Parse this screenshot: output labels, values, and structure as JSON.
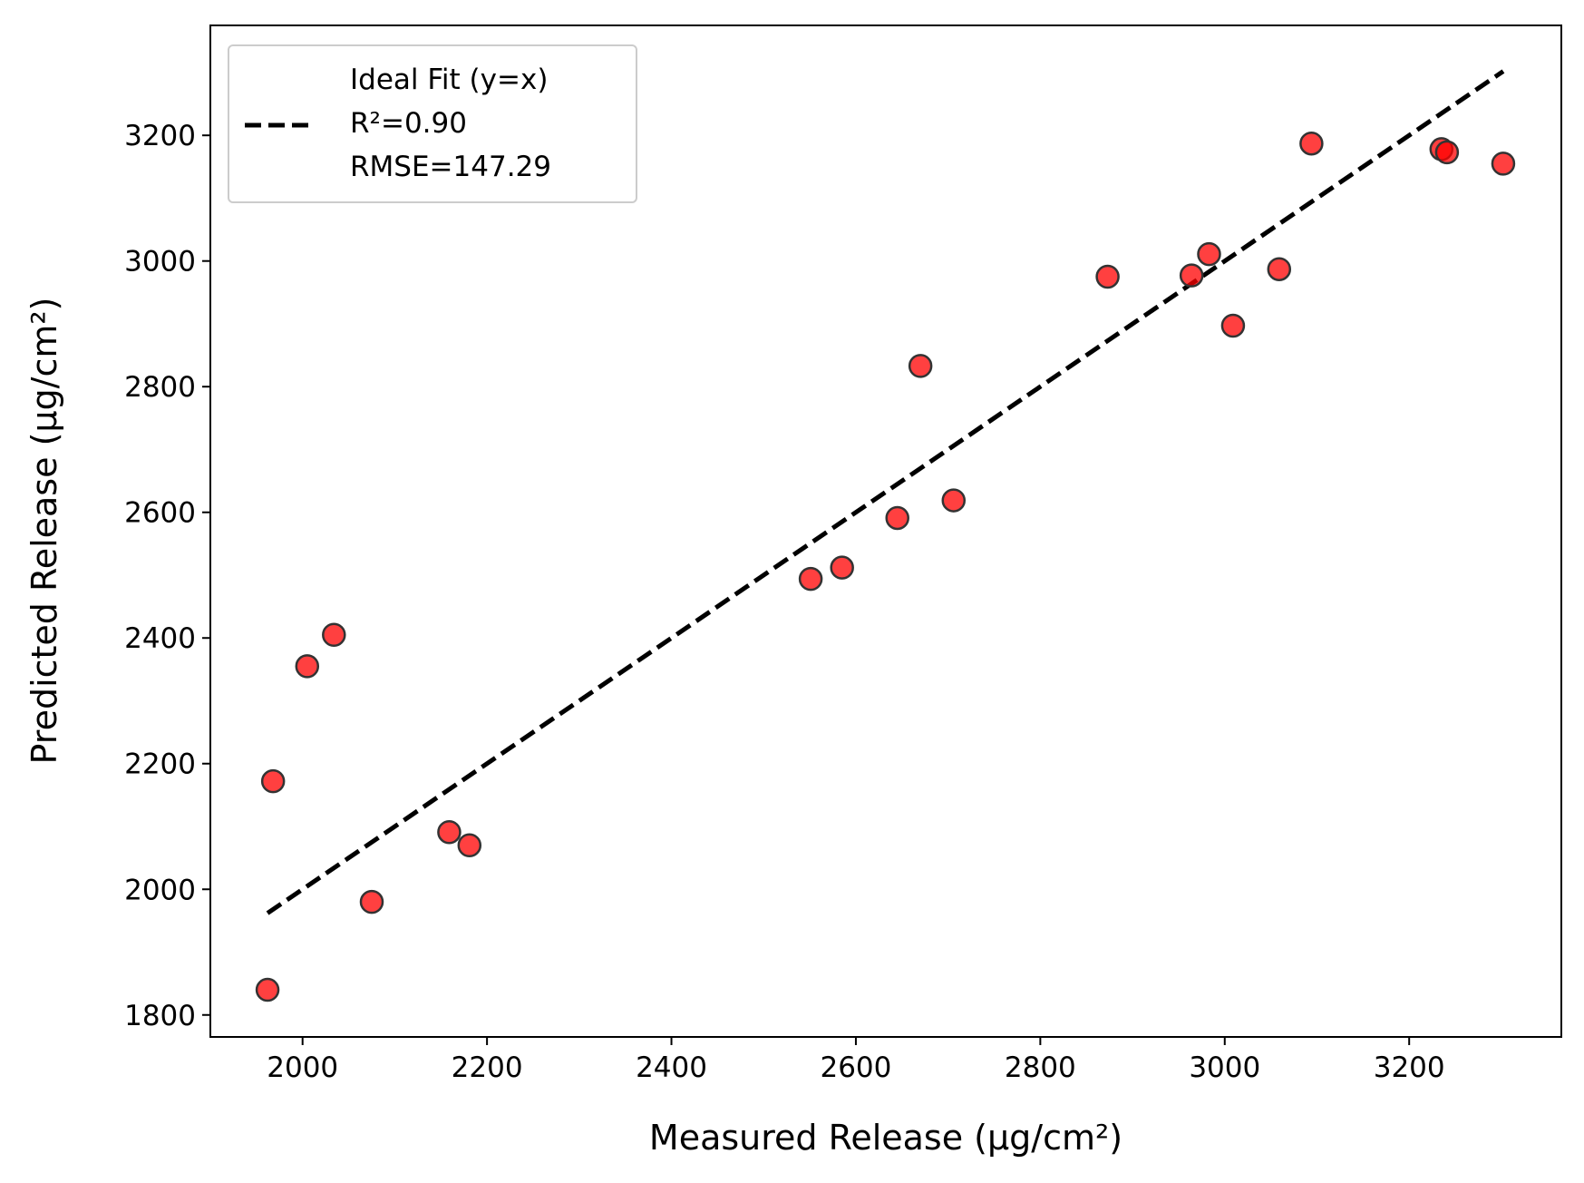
{
  "chart_data": {
    "type": "scatter",
    "xlabel": "Measured Release (µg/cm²)",
    "ylabel": "Predicted Release (µg/cm²)",
    "xlim": [
      1900,
      3365
    ],
    "ylim": [
      1765,
      3375
    ],
    "xticks": [
      2000,
      2200,
      2400,
      2600,
      2800,
      3000,
      3200
    ],
    "yticks": [
      1800,
      2000,
      2200,
      2400,
      2600,
      2800,
      3000,
      3200
    ],
    "grid": false,
    "legend_position": "top-left",
    "legend_lines": [
      "Ideal Fit (y=x)",
      "R²=0.90",
      "RMSE=147.29"
    ],
    "ideal_line": {
      "x": [
        1962,
        3302
      ],
      "y": [
        1962,
        3302
      ]
    },
    "colors": {
      "points": "#ff0000",
      "point_edge": "#333333",
      "line": "#000000"
    },
    "points": [
      {
        "x": 1962,
        "y": 1840
      },
      {
        "x": 1968,
        "y": 2172
      },
      {
        "x": 2005,
        "y": 2355
      },
      {
        "x": 2034,
        "y": 2405
      },
      {
        "x": 2075,
        "y": 1980
      },
      {
        "x": 2159,
        "y": 2091
      },
      {
        "x": 2181,
        "y": 2070
      },
      {
        "x": 2551,
        "y": 2494
      },
      {
        "x": 2585,
        "y": 2512
      },
      {
        "x": 2645,
        "y": 2591
      },
      {
        "x": 2670,
        "y": 2833
      },
      {
        "x": 2706,
        "y": 2619
      },
      {
        "x": 2873,
        "y": 2975
      },
      {
        "x": 2964,
        "y": 2977
      },
      {
        "x": 2983,
        "y": 3011
      },
      {
        "x": 3009,
        "y": 2897
      },
      {
        "x": 3059,
        "y": 2987
      },
      {
        "x": 3094,
        "y": 3187
      },
      {
        "x": 3235,
        "y": 3178
      },
      {
        "x": 3241,
        "y": 3173
      },
      {
        "x": 3302,
        "y": 3155
      }
    ]
  }
}
